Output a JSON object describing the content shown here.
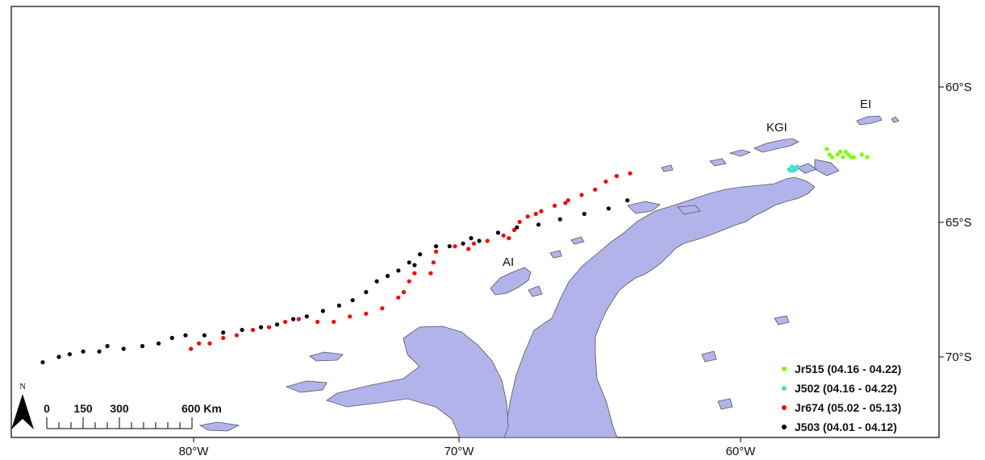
{
  "map": {
    "axes": {
      "x_ticks": [
        "80°W",
        "70°W",
        "60°W"
      ],
      "y_ticks": [
        "60°S",
        "65°S",
        "70°S"
      ]
    },
    "place_labels": [
      "EI",
      "KGI",
      "AI"
    ],
    "north_arrow": {
      "label": "N"
    },
    "scale_bar": {
      "labels": [
        "0",
        "150",
        "300",
        "600 Km"
      ]
    },
    "land_color": "#b3b3ec",
    "legend": [
      {
        "label": "Jr515 (04.16 - 04.22)",
        "color": "#7cfc00"
      },
      {
        "label": "J502 (04.16 - 04.22)",
        "color": "#40e0d0"
      },
      {
        "label": "Jr674 (05.02 - 05.13)",
        "color": "#ff0000"
      },
      {
        "label": "J503 (04.01 - 04.12)",
        "color": "#000000"
      }
    ],
    "tracks": [
      {
        "series": "Jr515",
        "points": [
          [
            -56.5,
            -62.3
          ],
          [
            -56.3,
            -62.6
          ],
          [
            -56.1,
            -62.5
          ],
          [
            -55.9,
            -62.6
          ],
          [
            -55.7,
            -62.5
          ],
          [
            -55.5,
            -62.6
          ],
          [
            -55.2,
            -62.5
          ],
          [
            -55.0,
            -62.6
          ],
          [
            -56.4,
            -62.5
          ],
          [
            -56.0,
            -62.4
          ],
          [
            -55.8,
            -62.4
          ],
          [
            -55.6,
            -62.6
          ]
        ]
      },
      {
        "series": "J502",
        "points": [
          [
            -57.9,
            -63.05
          ],
          [
            -57.8,
            -62.95
          ],
          [
            -57.7,
            -63.0
          ],
          [
            -57.6,
            -62.95
          ],
          [
            -57.85,
            -63.1
          ],
          [
            -57.75,
            -63.1
          ],
          [
            -57.65,
            -63.05
          ]
        ]
      },
      {
        "series": "Jr674",
        "points": [
          [
            -80.1,
            -69.7
          ],
          [
            -79.8,
            -69.5
          ],
          [
            -79.4,
            -69.5
          ],
          [
            -78.9,
            -69.3
          ],
          [
            -78.4,
            -69.2
          ],
          [
            -77.8,
            -69.0
          ],
          [
            -77.2,
            -68.9
          ],
          [
            -76.6,
            -68.7
          ],
          [
            -76.1,
            -68.6
          ],
          [
            -75.4,
            -68.7
          ],
          [
            -74.8,
            -68.7
          ],
          [
            -74.2,
            -68.5
          ],
          [
            -73.6,
            -68.4
          ],
          [
            -73.0,
            -68.2
          ],
          [
            -72.4,
            -67.8
          ],
          [
            -72.2,
            -67.6
          ],
          [
            -72.0,
            -67.2
          ],
          [
            -71.8,
            -66.9
          ],
          [
            -71.2,
            -66.9
          ],
          [
            -71.1,
            -66.5
          ],
          [
            -71.0,
            -66.1
          ],
          [
            -70.3,
            -65.9
          ],
          [
            -69.6,
            -65.8
          ],
          [
            -69.1,
            -65.7
          ],
          [
            -68.5,
            -65.5
          ],
          [
            -68.1,
            -65.3
          ],
          [
            -67.9,
            -65.0
          ],
          [
            -67.6,
            -64.8
          ],
          [
            -67.1,
            -64.6
          ],
          [
            -66.6,
            -64.4
          ],
          [
            -66.1,
            -64.2
          ],
          [
            -65.6,
            -64.0
          ],
          [
            -65.1,
            -63.8
          ],
          [
            -64.7,
            -63.5
          ],
          [
            -64.3,
            -63.3
          ],
          [
            -63.8,
            -63.2
          ],
          [
            -68.3,
            -65.6
          ],
          [
            -67.3,
            -64.7
          ],
          [
            -66.2,
            -64.3
          ],
          [
            -69.8,
            -66.0
          ]
        ]
      },
      {
        "series": "J503",
        "points": [
          [
            -85.6,
            -70.2
          ],
          [
            -85.0,
            -70.0
          ],
          [
            -84.6,
            -69.9
          ],
          [
            -84.1,
            -69.8
          ],
          [
            -83.5,
            -69.8
          ],
          [
            -83.2,
            -69.6
          ],
          [
            -82.6,
            -69.7
          ],
          [
            -81.9,
            -69.6
          ],
          [
            -81.3,
            -69.5
          ],
          [
            -80.8,
            -69.3
          ],
          [
            -80.3,
            -69.2
          ],
          [
            -79.6,
            -69.2
          ],
          [
            -78.9,
            -69.1
          ],
          [
            -78.2,
            -69.0
          ],
          [
            -77.5,
            -68.9
          ],
          [
            -76.9,
            -68.8
          ],
          [
            -76.3,
            -68.6
          ],
          [
            -75.8,
            -68.5
          ],
          [
            -75.2,
            -68.3
          ],
          [
            -74.6,
            -68.1
          ],
          [
            -74.1,
            -67.9
          ],
          [
            -73.6,
            -67.6
          ],
          [
            -73.2,
            -67.2
          ],
          [
            -72.8,
            -67.0
          ],
          [
            -72.4,
            -66.8
          ],
          [
            -72.0,
            -66.5
          ],
          [
            -71.6,
            -66.2
          ],
          [
            -71.0,
            -65.9
          ],
          [
            -70.5,
            -65.9
          ],
          [
            -70.0,
            -65.8
          ],
          [
            -69.4,
            -65.7
          ],
          [
            -68.7,
            -65.4
          ],
          [
            -68.0,
            -65.2
          ],
          [
            -67.2,
            -65.1
          ],
          [
            -66.4,
            -64.9
          ],
          [
            -65.5,
            -64.7
          ],
          [
            -64.6,
            -64.5
          ],
          [
            -63.9,
            -64.2
          ],
          [
            -69.7,
            -65.6
          ],
          [
            -71.8,
            -66.6
          ]
        ]
      }
    ]
  }
}
